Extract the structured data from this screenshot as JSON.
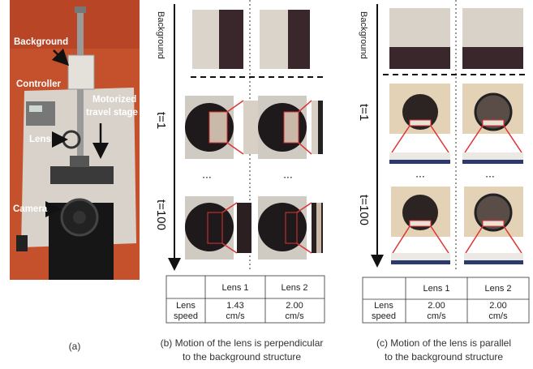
{
  "panel_a": {
    "labels": {
      "background": "Background",
      "controller": "Controller",
      "lens": "Lens",
      "stage": [
        "Motorized",
        "travel stage"
      ],
      "camera": "Camera"
    },
    "caption": "(a)"
  },
  "panel_b": {
    "axis_labels": [
      "Background",
      "t=1",
      "t=100"
    ],
    "ellipses": [
      "...",
      "..."
    ],
    "table": {
      "header": [
        "Lens 1",
        "Lens 2"
      ],
      "row": [
        [
          "Lens",
          "speed"
        ],
        [
          "1.43",
          "cm/s"
        ],
        [
          "2.00",
          "cm/s"
        ]
      ]
    },
    "caption": [
      "(b) Motion of the lens is perpendicular",
      "to the background structure"
    ]
  },
  "panel_c": {
    "axis_labels": [
      "Background",
      "t=1",
      "t=100"
    ],
    "ellipses": [
      "...",
      "..."
    ],
    "table": {
      "header": [
        "Lens 1",
        "Lens 2"
      ],
      "row": [
        [
          "Lens",
          "speed"
        ],
        [
          "2.00",
          "cm/s"
        ],
        [
          "2.00",
          "cm/s"
        ]
      ]
    },
    "caption": [
      "(c) Motion of the lens is parallel",
      "to the background structure"
    ]
  }
}
